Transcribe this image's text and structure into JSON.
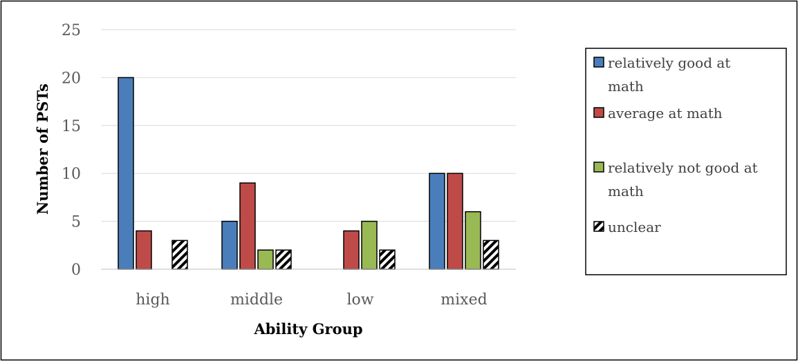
{
  "chart_data": {
    "type": "bar",
    "title": "",
    "xlabel": "Ability Group",
    "ylabel": "Number of PSTs",
    "ylim": [
      0,
      25
    ],
    "yticks": [
      0,
      5,
      10,
      15,
      20,
      25
    ],
    "grid": true,
    "legend_position": "right",
    "categories": [
      "high",
      "middle",
      "low",
      "mixed"
    ],
    "series": [
      {
        "name": "relatively good at math",
        "values": [
          20,
          5,
          0,
          10
        ],
        "color": "#4a7ebb",
        "pattern": "solid"
      },
      {
        "name": "average at math",
        "values": [
          4,
          9,
          4,
          10
        ],
        "color": "#be4b48",
        "pattern": "solid"
      },
      {
        "name": "relatively not good at math",
        "values": [
          0,
          2,
          5,
          6
        ],
        "color": "#98b954",
        "pattern": "solid"
      },
      {
        "name": "unclear",
        "values": [
          3,
          2,
          2,
          3
        ],
        "color": "#000000",
        "pattern": "hatch"
      }
    ]
  },
  "legend": {
    "items": [
      {
        "lines": [
          "relatively good at",
          "math"
        ]
      },
      {
        "lines": [
          "average at math"
        ]
      },
      {
        "lines": [
          "relatively not good at",
          "math"
        ]
      },
      {
        "lines": [
          "unclear"
        ]
      }
    ]
  }
}
